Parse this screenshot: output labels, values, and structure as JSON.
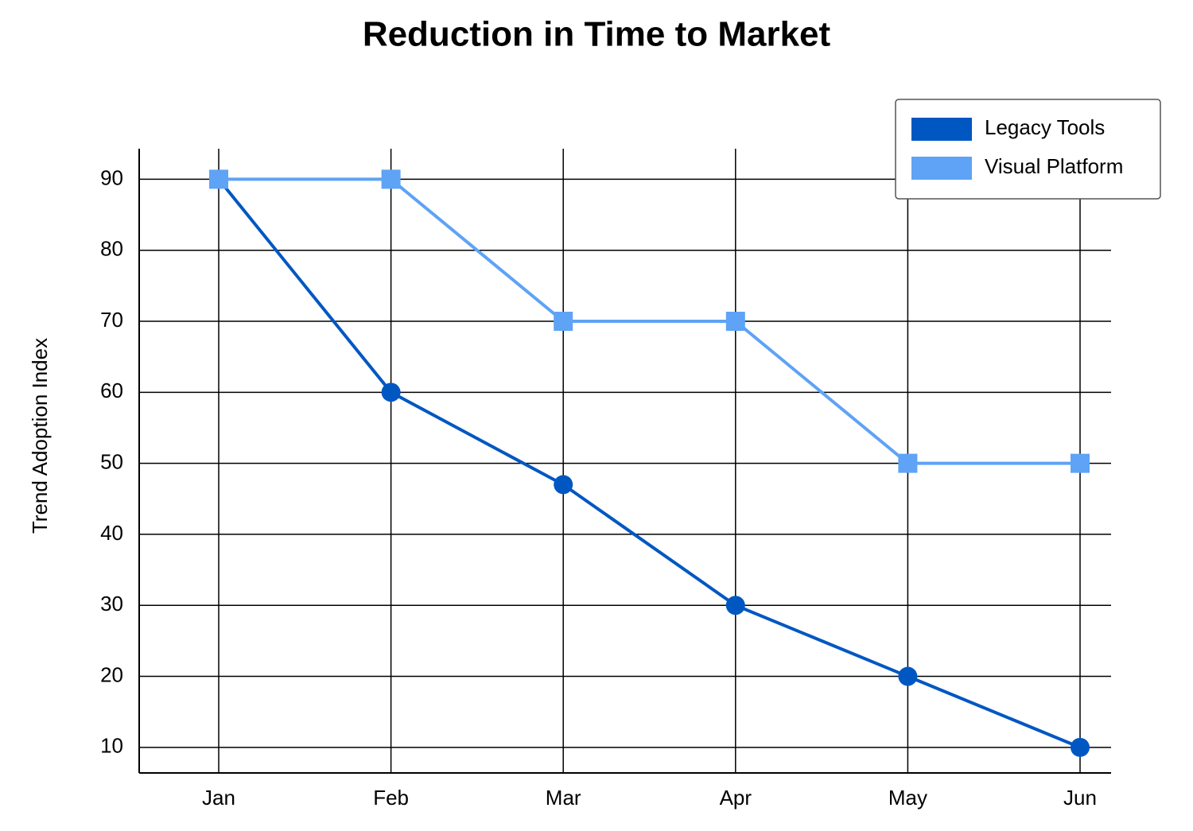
{
  "chart_data": {
    "type": "line",
    "title": "Reduction in Time to Market",
    "y_label": "Trend Adoption Index",
    "categories": [
      "Jan",
      "Feb",
      "Mar",
      "Apr",
      "May",
      "Jun"
    ],
    "series": [
      {
        "name": "Legacy Tools",
        "color": "#0057c2",
        "marker": "circle",
        "values": [
          90,
          60,
          47,
          30,
          20,
          10
        ]
      },
      {
        "name": "Visual Platform",
        "color": "#5ea3f5",
        "marker": "square",
        "values": [
          90,
          90,
          70,
          70,
          50,
          50
        ]
      }
    ],
    "ylim": [
      6.4,
      94.3
    ],
    "yticks": [
      10,
      20,
      30,
      40,
      50,
      60,
      70,
      80,
      90
    ],
    "grid": true,
    "legend": "top-right"
  }
}
